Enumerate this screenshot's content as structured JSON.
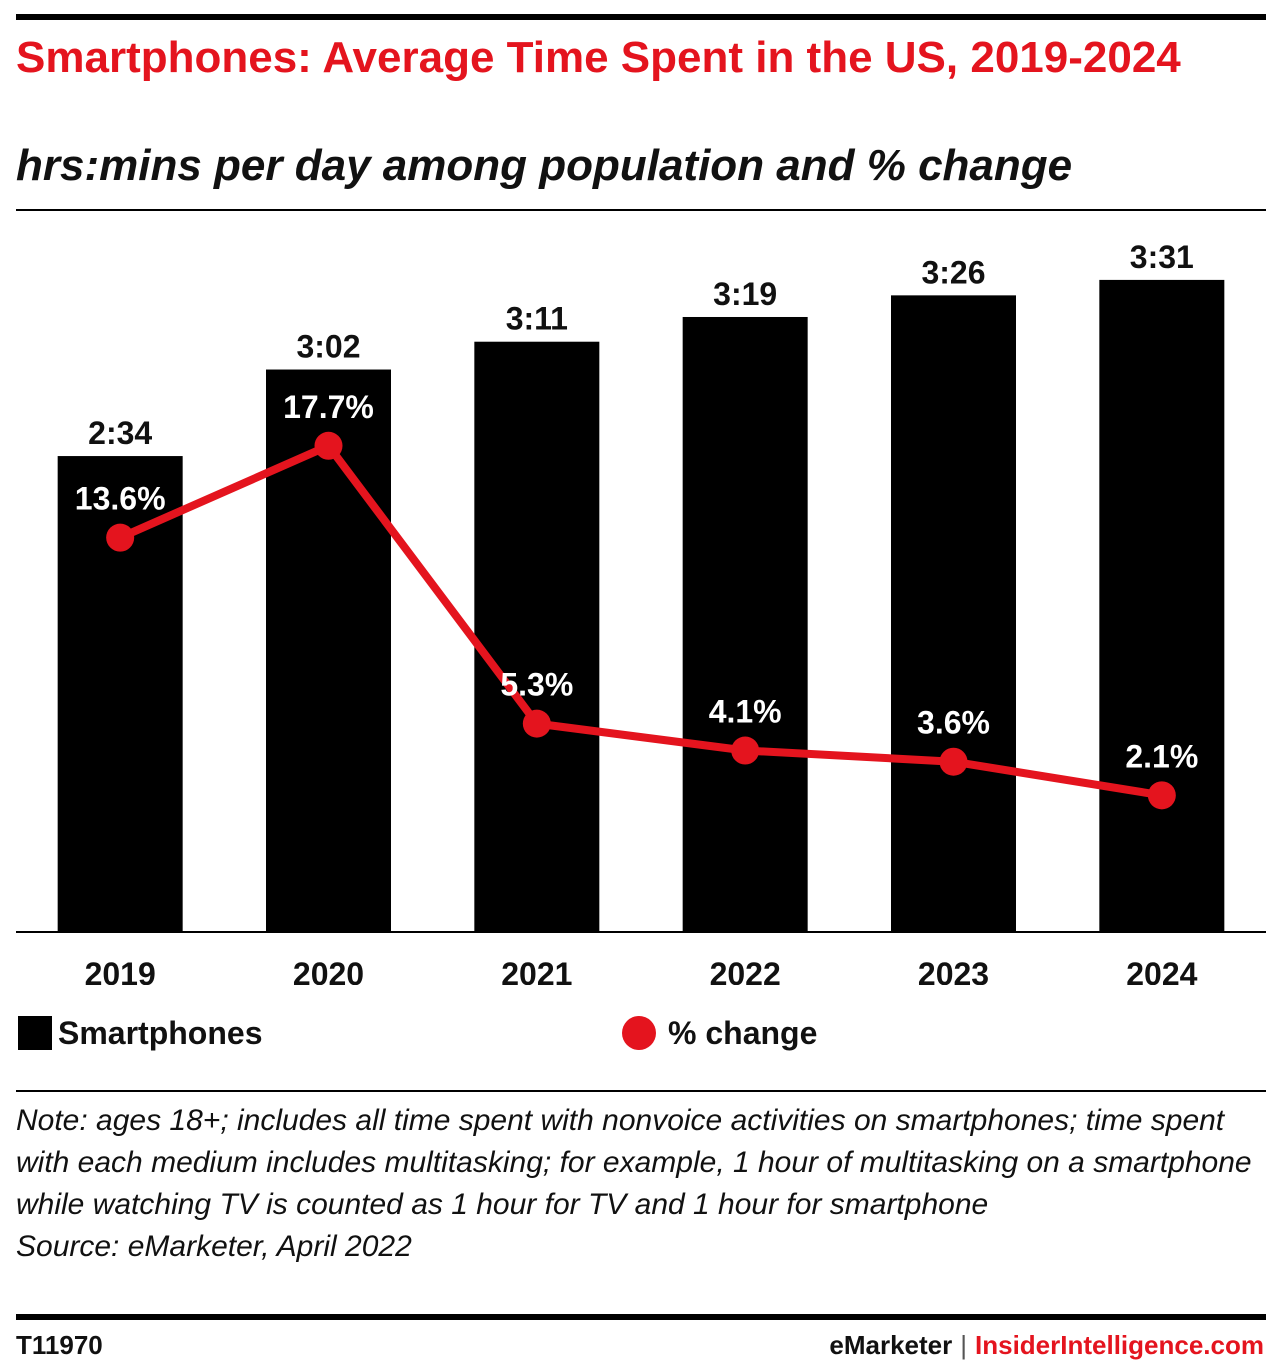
{
  "header": {
    "title": "Smartphones: Average Time Spent in the US, 2019-2024",
    "subtitle": "hrs:mins per day among population and % change"
  },
  "colors": {
    "bar": "#000000",
    "line": "#e4141e",
    "title": "#e4141e"
  },
  "chart_data": {
    "type": "bar",
    "categories": [
      "2019",
      "2020",
      "2021",
      "2022",
      "2023",
      "2024"
    ],
    "series": [
      {
        "name": "Smartphones",
        "type": "bar",
        "values_minutes": [
          154,
          182,
          191,
          199,
          206,
          211
        ],
        "labels": [
          "2:34",
          "3:02",
          "3:11",
          "3:19",
          "3:26",
          "3:31"
        ]
      },
      {
        "name": "% change",
        "type": "line",
        "values": [
          13.6,
          17.7,
          5.3,
          4.1,
          3.6,
          2.1
        ],
        "labels": [
          "13.6%",
          "17.7%",
          "5.3%",
          "4.1%",
          "3.6%",
          "2.1%"
        ]
      }
    ],
    "ylim_minutes": [
      0,
      232
    ],
    "pct_ylim": [
      -4,
      28
    ],
    "legend_position": "bottom",
    "grid": false
  },
  "legend": {
    "bar_label": "Smartphones",
    "line_label": "% change"
  },
  "note": {
    "text": "Note: ages 18+; includes all time spent with nonvoice activities on smartphones; time spent with each medium includes multitasking; for example, 1 hour of multitasking on a smartphone while watching TV is counted as 1 hour for TV and 1 hour for smartphone",
    "source": "Source: eMarketer, April 2022"
  },
  "footer": {
    "id": "T11970",
    "brand": "eMarketer",
    "brand2": "InsiderIntelligence.com"
  }
}
